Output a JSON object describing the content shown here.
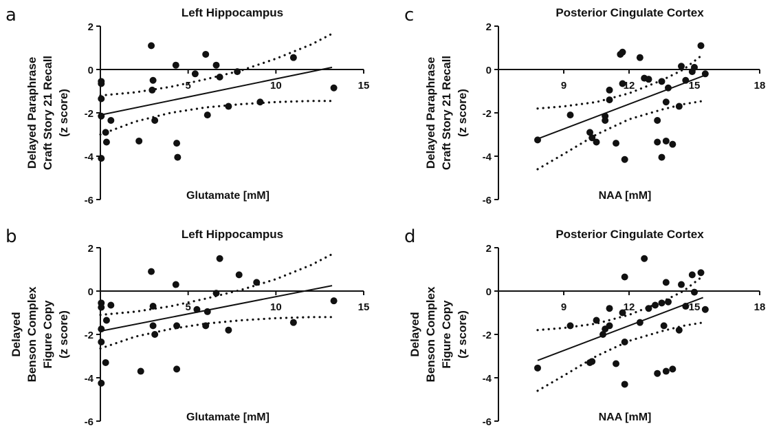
{
  "chart_data": [
    {
      "id": "a",
      "panel_label": "a",
      "type": "scatter",
      "title": "Left Hippocampus",
      "xlabel": "Glutamate [mM]",
      "ylabel": [
        "Delayed Paraphrase",
        "Craft Story 21 Recall",
        "(z score)"
      ],
      "xlim": [
        0,
        15
      ],
      "ylim": [
        -6,
        2
      ],
      "xticks": [
        5,
        10,
        15
      ],
      "yticks": [
        -6,
        -4,
        -2,
        0,
        2
      ],
      "fit_line": {
        "x": [
          0,
          13.2
        ],
        "y": [
          -2.1,
          0.1
        ]
      },
      "ci_upper": {
        "x": [
          0,
          2,
          4,
          6,
          8,
          10,
          12,
          13.2
        ],
        "y": [
          -1.2,
          -1.05,
          -0.8,
          -0.45,
          -0.05,
          0.5,
          1.15,
          1.65
        ]
      },
      "ci_lower": {
        "x": [
          0,
          2,
          4,
          6,
          8,
          10,
          12,
          13.2
        ],
        "y": [
          -3.0,
          -2.4,
          -2.0,
          -1.75,
          -1.6,
          -1.5,
          -1.45,
          -1.45
        ]
      },
      "points": [
        {
          "x": 0.05,
          "y": -0.55
        },
        {
          "x": 0.05,
          "y": -0.65
        },
        {
          "x": 0.05,
          "y": -1.35
        },
        {
          "x": 0.05,
          "y": -2.15
        },
        {
          "x": 0.05,
          "y": -4.1
        },
        {
          "x": 0.3,
          "y": -2.9
        },
        {
          "x": 0.35,
          "y": -3.35
        },
        {
          "x": 0.6,
          "y": -2.35
        },
        {
          "x": 2.2,
          "y": -3.3
        },
        {
          "x": 2.9,
          "y": 1.1
        },
        {
          "x": 2.95,
          "y": -0.95
        },
        {
          "x": 3.0,
          "y": -0.5
        },
        {
          "x": 3.1,
          "y": -2.35
        },
        {
          "x": 4.3,
          "y": 0.2
        },
        {
          "x": 4.35,
          "y": -3.4
        },
        {
          "x": 4.4,
          "y": -4.05
        },
        {
          "x": 5.4,
          "y": -0.2
        },
        {
          "x": 6.0,
          "y": 0.7
        },
        {
          "x": 6.1,
          "y": -2.1
        },
        {
          "x": 6.6,
          "y": 0.2
        },
        {
          "x": 6.8,
          "y": -0.35
        },
        {
          "x": 7.3,
          "y": -1.7
        },
        {
          "x": 7.8,
          "y": -0.1
        },
        {
          "x": 9.1,
          "y": -1.5
        },
        {
          "x": 11.0,
          "y": 0.55
        },
        {
          "x": 13.3,
          "y": -0.85
        }
      ]
    },
    {
      "id": "b",
      "panel_label": "b",
      "type": "scatter",
      "title": "Left Hippocampus",
      "xlabel": "Glutamate [mM]",
      "ylabel": [
        "Delayed",
        "Benson Complex",
        "Figure Copy",
        "(z score)"
      ],
      "xlim": [
        0,
        15
      ],
      "ylim": [
        -6,
        2
      ],
      "xticks": [
        5,
        10,
        15
      ],
      "yticks": [
        -6,
        -4,
        -2,
        0,
        2
      ],
      "fit_line": {
        "x": [
          0,
          13.2
        ],
        "y": [
          -1.85,
          0.25
        ]
      },
      "ci_upper": {
        "x": [
          0,
          2,
          4,
          6,
          8,
          10,
          12,
          13.2
        ],
        "y": [
          -1.1,
          -0.95,
          -0.7,
          -0.35,
          0.05,
          0.55,
          1.2,
          1.7
        ]
      },
      "ci_lower": {
        "x": [
          0,
          2,
          4,
          6,
          8,
          10,
          12,
          13.2
        ],
        "y": [
          -2.65,
          -2.1,
          -1.75,
          -1.5,
          -1.35,
          -1.25,
          -1.2,
          -1.2
        ]
      },
      "points": [
        {
          "x": 0.05,
          "y": -0.55
        },
        {
          "x": 0.05,
          "y": -0.75
        },
        {
          "x": 0.05,
          "y": -1.75
        },
        {
          "x": 0.05,
          "y": -2.35
        },
        {
          "x": 0.05,
          "y": -4.25
        },
        {
          "x": 0.3,
          "y": -3.3
        },
        {
          "x": 0.35,
          "y": -1.35
        },
        {
          "x": 0.6,
          "y": -0.65
        },
        {
          "x": 2.3,
          "y": -3.7
        },
        {
          "x": 2.9,
          "y": 0.9
        },
        {
          "x": 3.0,
          "y": -0.7
        },
        {
          "x": 3.0,
          "y": -1.6
        },
        {
          "x": 3.1,
          "y": -2.0
        },
        {
          "x": 4.3,
          "y": 0.3
        },
        {
          "x": 4.35,
          "y": -1.6
        },
        {
          "x": 4.35,
          "y": -3.6
        },
        {
          "x": 5.5,
          "y": -0.85
        },
        {
          "x": 6.0,
          "y": -1.6
        },
        {
          "x": 6.6,
          "y": -0.1
        },
        {
          "x": 6.8,
          "y": 1.5
        },
        {
          "x": 7.3,
          "y": -1.8
        },
        {
          "x": 7.9,
          "y": 0.75
        },
        {
          "x": 8.9,
          "y": 0.4
        },
        {
          "x": 11.0,
          "y": -1.45
        },
        {
          "x": 13.3,
          "y": -0.45
        },
        {
          "x": 6.1,
          "y": -0.95
        }
      ]
    },
    {
      "id": "c",
      "panel_label": "c",
      "type": "scatter",
      "title": "Posterior Cingulate Cortex",
      "xlabel": "NAA [mM]",
      "ylabel": [
        "Delayed Paraphrase",
        "Craft Story 21 Recall",
        "(z score)"
      ],
      "xlim": [
        6,
        18
      ],
      "ylim": [
        -6,
        2
      ],
      "xticks": [
        9,
        12,
        15,
        18
      ],
      "yticks": [
        -6,
        -4,
        -2,
        0,
        2
      ],
      "fit_line": {
        "x": [
          7.8,
          15.4
        ],
        "y": [
          -3.2,
          -0.3
        ]
      },
      "ci_upper": {
        "x": [
          7.8,
          9,
          10.5,
          12,
          13.5,
          14.5,
          15.4
        ],
        "y": [
          -1.8,
          -1.7,
          -1.5,
          -1.1,
          -0.5,
          0.0,
          0.7
        ]
      },
      "ci_lower": {
        "x": [
          7.8,
          9,
          10.5,
          12,
          13.5,
          14.5,
          15.4
        ],
        "y": [
          -4.6,
          -3.9,
          -3.0,
          -2.3,
          -1.85,
          -1.6,
          -1.45
        ]
      },
      "points": [
        {
          "x": 7.8,
          "y": -3.25
        },
        {
          "x": 9.3,
          "y": -2.1
        },
        {
          "x": 10.2,
          "y": -2.9
        },
        {
          "x": 10.3,
          "y": -3.15
        },
        {
          "x": 10.5,
          "y": -3.35
        },
        {
          "x": 10.9,
          "y": -2.15
        },
        {
          "x": 10.9,
          "y": -2.35
        },
        {
          "x": 11.1,
          "y": -1.4
        },
        {
          "x": 11.1,
          "y": -0.95
        },
        {
          "x": 11.4,
          "y": -3.4
        },
        {
          "x": 11.6,
          "y": 0.7
        },
        {
          "x": 11.7,
          "y": 0.8
        },
        {
          "x": 11.7,
          "y": -0.65
        },
        {
          "x": 11.8,
          "y": -4.15
        },
        {
          "x": 12.5,
          "y": 0.55
        },
        {
          "x": 12.7,
          "y": -0.4
        },
        {
          "x": 12.9,
          "y": -0.45
        },
        {
          "x": 13.3,
          "y": -2.35
        },
        {
          "x": 13.3,
          "y": -3.35
        },
        {
          "x": 13.5,
          "y": -0.55
        },
        {
          "x": 13.5,
          "y": -4.05
        },
        {
          "x": 13.7,
          "y": -1.5
        },
        {
          "x": 13.7,
          "y": -3.3
        },
        {
          "x": 13.8,
          "y": -0.85
        },
        {
          "x": 14.0,
          "y": -3.45
        },
        {
          "x": 14.3,
          "y": -1.7
        },
        {
          "x": 14.4,
          "y": 0.15
        },
        {
          "x": 14.6,
          "y": -0.5
        },
        {
          "x": 14.9,
          "y": -0.1
        },
        {
          "x": 15.0,
          "y": 0.1
        },
        {
          "x": 15.3,
          "y": 1.1
        },
        {
          "x": 15.5,
          "y": -0.2
        }
      ]
    },
    {
      "id": "d",
      "panel_label": "d",
      "type": "scatter",
      "title": "Posterior Cingulate Cortex",
      "xlabel": "NAA [mM]",
      "ylabel": [
        "Delayed",
        "Benson Complex",
        "Figure Copy",
        "(z score)"
      ],
      "xlim": [
        6,
        18
      ],
      "ylim": [
        -6,
        2
      ],
      "xticks": [
        9,
        12,
        15,
        18
      ],
      "yticks": [
        -6,
        -4,
        -2,
        0,
        2
      ],
      "fit_line": {
        "x": [
          7.8,
          15.4
        ],
        "y": [
          -3.2,
          -0.3
        ]
      },
      "ci_upper": {
        "x": [
          7.8,
          9,
          10.5,
          12,
          13.5,
          14.5,
          15.4
        ],
        "y": [
          -1.8,
          -1.7,
          -1.5,
          -1.1,
          -0.5,
          0.0,
          0.7
        ]
      },
      "ci_lower": {
        "x": [
          7.8,
          9,
          10.5,
          12,
          13.5,
          14.5,
          15.4
        ],
        "y": [
          -4.6,
          -3.9,
          -3.0,
          -2.3,
          -1.85,
          -1.6,
          -1.45
        ]
      },
      "points": [
        {
          "x": 7.8,
          "y": -3.55
        },
        {
          "x": 9.3,
          "y": -1.6
        },
        {
          "x": 10.2,
          "y": -3.3
        },
        {
          "x": 10.3,
          "y": -3.25
        },
        {
          "x": 10.5,
          "y": -1.35
        },
        {
          "x": 10.8,
          "y": -2.0
        },
        {
          "x": 10.9,
          "y": -1.75
        },
        {
          "x": 11.1,
          "y": -1.6
        },
        {
          "x": 11.1,
          "y": -0.8
        },
        {
          "x": 11.4,
          "y": -3.35
        },
        {
          "x": 11.7,
          "y": -1.0
        },
        {
          "x": 11.8,
          "y": 0.65
        },
        {
          "x": 11.8,
          "y": -2.35
        },
        {
          "x": 11.8,
          "y": -4.3
        },
        {
          "x": 12.5,
          "y": -1.45
        },
        {
          "x": 12.7,
          "y": 1.5
        },
        {
          "x": 12.9,
          "y": -0.8
        },
        {
          "x": 13.2,
          "y": -0.65
        },
        {
          "x": 13.3,
          "y": -3.8
        },
        {
          "x": 13.5,
          "y": -0.55
        },
        {
          "x": 13.6,
          "y": -1.6
        },
        {
          "x": 13.7,
          "y": -3.7
        },
        {
          "x": 13.7,
          "y": 0.4
        },
        {
          "x": 13.8,
          "y": -0.5
        },
        {
          "x": 14.0,
          "y": -3.6
        },
        {
          "x": 14.3,
          "y": -1.8
        },
        {
          "x": 14.4,
          "y": 0.3
        },
        {
          "x": 14.6,
          "y": -0.7
        },
        {
          "x": 14.9,
          "y": 0.75
        },
        {
          "x": 15.0,
          "y": -0.05
        },
        {
          "x": 15.3,
          "y": 0.85
        },
        {
          "x": 15.5,
          "y": -0.85
        }
      ]
    }
  ]
}
